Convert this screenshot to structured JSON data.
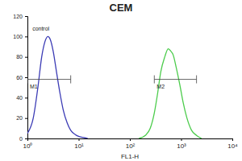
{
  "chart_data": {
    "type": "line",
    "title": "CEM",
    "x_label": "FL1-H",
    "log": "x",
    "series": [
      {
        "name": "control",
        "color": "#3b3bb5",
        "x": [
          1,
          1.3,
          1.6,
          1.9,
          2.2,
          2.5,
          2.8,
          3.2,
          3.7,
          4.3,
          5,
          6,
          7,
          8.5,
          10,
          12,
          15
        ],
        "values": [
          5,
          20,
          50,
          80,
          95,
          100,
          97,
          85,
          65,
          45,
          28,
          15,
          8,
          4,
          2,
          1,
          0
        ]
      },
      {
        "color": "#4ccc4c",
        "x": [
          150,
          200,
          250,
          300,
          350,
          400,
          480,
          560,
          620,
          700,
          800,
          950,
          1100,
          1300,
          1600,
          2000,
          2500
        ],
        "values": [
          0,
          3,
          10,
          25,
          45,
          65,
          80,
          88,
          86,
          82,
          70,
          52,
          35,
          20,
          8,
          3,
          0
        ]
      }
    ],
    "annotations": [
      {
        "text": "control",
        "x": 1.25,
        "y": 106
      }
    ],
    "gates": [
      {
        "label": "M1",
        "start": 1,
        "end": 7,
        "level": 58
      },
      {
        "label": "M2",
        "start": 300,
        "end": 2000,
        "level": 58
      }
    ],
    "xlim": [
      1,
      10000
    ],
    "xticks": [
      {
        "value": 1,
        "label": "10⁰"
      },
      {
        "value": 10,
        "label": "10¹"
      },
      {
        "value": 100,
        "label": "10²"
      },
      {
        "value": 1000,
        "label": "10³"
      },
      {
        "value": 10000,
        "label": "10⁴"
      }
    ],
    "ylim": [
      0,
      120
    ],
    "yticks": [
      0,
      20,
      40,
      60,
      80,
      100,
      120
    ]
  }
}
